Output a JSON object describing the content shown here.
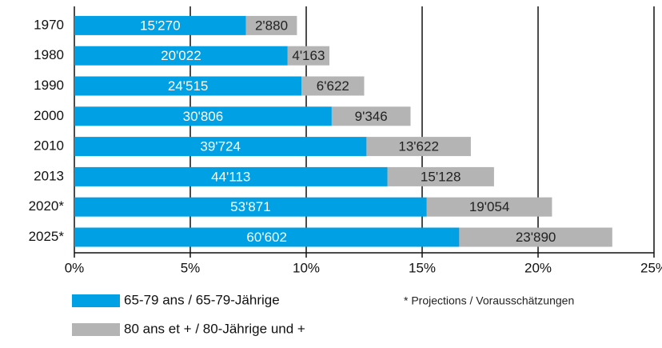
{
  "chart_data": {
    "type": "stacked-bar-horizontal",
    "categories": [
      "1970",
      "1980",
      "1990",
      "2000",
      "2010",
      "2013",
      "2020*",
      "2025*"
    ],
    "series": [
      {
        "name": "65-79 ans / 65-79-Jährige",
        "color": "#00a0e4",
        "values": [
          7.4,
          9.2,
          9.8,
          11.1,
          12.6,
          13.5,
          15.2,
          16.6
        ],
        "counts": [
          "15'270",
          "20'022",
          "24'515",
          "30'806",
          "39'724",
          "44'113",
          "53'871",
          "60'602"
        ]
      },
      {
        "name": "80 ans et + / 80-Jährige und +",
        "color": "#b4b4b4",
        "values": [
          2.2,
          1.8,
          2.7,
          3.4,
          4.5,
          4.6,
          5.4,
          6.6
        ],
        "counts": [
          "2'880",
          "4'163",
          "6'622",
          "9'346",
          "13'622",
          "15'128",
          "19'054",
          "23'890"
        ]
      }
    ],
    "xlim": [
      0,
      25
    ],
    "xticks": [
      {
        "value": 0,
        "label": "0%"
      },
      {
        "value": 5,
        "label": "5%"
      },
      {
        "value": 10,
        "label": "10%"
      },
      {
        "value": 15,
        "label": "15%"
      },
      {
        "value": 20,
        "label": "20%"
      },
      {
        "value": 25,
        "label": "25%"
      }
    ],
    "grid": true,
    "note": "* Projections / Vorausschätzungen"
  }
}
